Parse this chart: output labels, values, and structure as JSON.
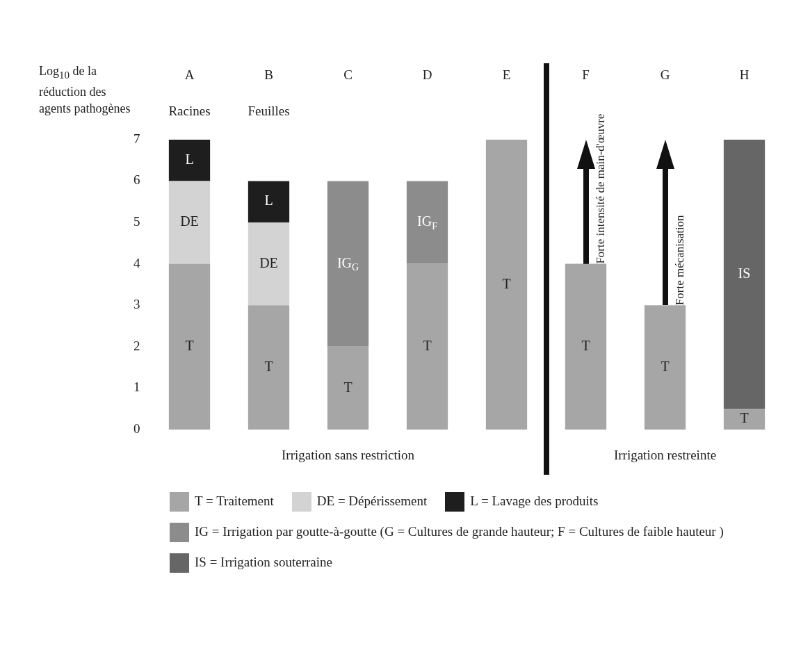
{
  "chart_data": {
    "type": "bar",
    "stacked": true,
    "ylabel": "Log$_{10}$ de la réduction des agents pathogènes",
    "categories": [
      "A",
      "B",
      "C",
      "D",
      "E",
      "F",
      "G",
      "H"
    ],
    "ylim": [
      0,
      7
    ],
    "yticks": [
      0,
      1,
      2,
      3,
      4,
      5,
      6,
      7
    ],
    "grid": false,
    "legend": "bottom",
    "series": [
      {
        "name": "T = Traitement",
        "color": "#a6a6a6",
        "values": [
          4,
          3,
          2,
          4,
          7,
          4,
          3,
          0.5
        ],
        "value_labels": [
          "T",
          "T",
          "T",
          "T",
          "T",
          "T",
          "T",
          "T"
        ]
      },
      {
        "name": "DE = Dépérissement",
        "color": "#d3d3d3",
        "values": [
          2,
          2,
          null,
          null,
          null,
          null,
          null,
          null
        ],
        "value_labels": [
          "DE",
          "DE",
          null,
          null,
          null,
          null,
          null,
          null
        ]
      },
      {
        "name": "L = Lavage des produits",
        "color": "#1e1e1e",
        "values": [
          1,
          1,
          null,
          null,
          null,
          null,
          null,
          null
        ],
        "value_labels": [
          "L",
          "L",
          null,
          null,
          null,
          null,
          null,
          null
        ]
      },
      {
        "name": "IG = Irrigation par goutte-à-goutte (G = Cultures de grande hauteur; F = Cultures de faible hauteur )",
        "color": "#8c8c8c",
        "values": [
          null,
          null,
          4,
          2,
          null,
          null,
          null,
          null
        ],
        "value_labels": [
          null,
          null,
          "IG$_{G}$",
          "IG$_{F}$",
          null,
          null,
          null,
          null
        ]
      },
      {
        "name": "IS = Irrigation souterraine",
        "color": "#666666",
        "values": [
          null,
          null,
          null,
          null,
          null,
          null,
          null,
          6.5
        ],
        "value_labels": [
          null,
          null,
          null,
          null,
          null,
          null,
          null,
          "IS"
        ]
      }
    ],
    "annotations": [
      "Racines",
      "Feuilles",
      "Forte intensité de main-d'œuvre",
      "Forte mécanisation",
      "Irrigation sans restriction",
      "Irrigation restreinte"
    ]
  }
}
